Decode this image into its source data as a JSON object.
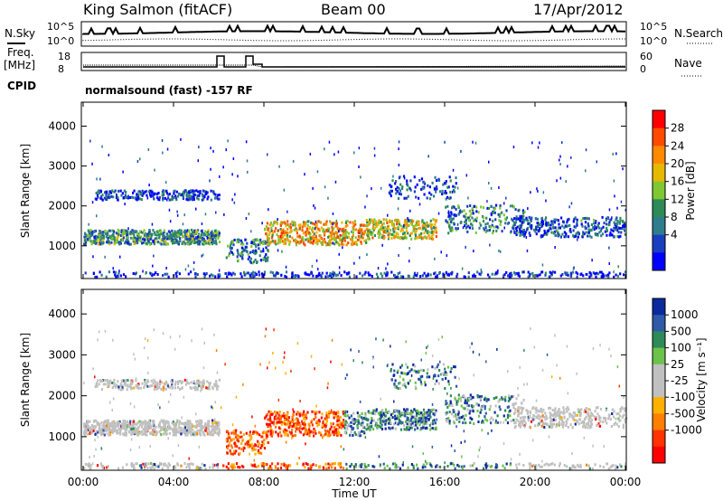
{
  "header": {
    "station": "King Salmon (fitACF)",
    "beam": "Beam 00",
    "date": "17/Apr/2012"
  },
  "status": {
    "nsky_label": "N.Sky",
    "nsearch_label": "N.Search",
    "noise_ticks": [
      "10^5",
      "10^0"
    ],
    "freq_label": "Freq.",
    "freq_unit": "[MHz]",
    "freq_ticks": [
      "18",
      "8"
    ],
    "nave_label": "Nave",
    "nave_ticks": [
      "60",
      "0"
    ],
    "cpid_label": "CPID",
    "cpid_text": "normalsound (fast) -157 RF"
  },
  "chart_data": [
    {
      "type": "heatmap",
      "panel": "power",
      "ylabel": "Slant Range [km]",
      "yticks": [
        1000,
        2000,
        3000,
        4000
      ],
      "ylim": [
        180,
        4600
      ],
      "colorbar_label": "Power [dB]",
      "colorbar_ticks": [
        "28",
        "24",
        "20",
        "16",
        "12",
        "8",
        "4"
      ],
      "colorbar_colors": [
        "#ff0000",
        "#ff4a00",
        "#ff8a00",
        "#e6b800",
        "#7fc832",
        "#2e8b57",
        "#2e7d8c",
        "#1a3ec0",
        "#0000ff"
      ]
    },
    {
      "type": "heatmap",
      "panel": "velocity",
      "ylabel": "Slant Range [km]",
      "yticks": [
        1000,
        2000,
        3000,
        4000
      ],
      "ylim": [
        180,
        4600
      ],
      "colorbar_label": "Velocity [m s⁻¹]",
      "colorbar_ticks": [
        "1000",
        "500",
        "100",
        "25",
        "-25",
        "-100",
        "-500",
        "-1000"
      ],
      "colorbar_colors": [
        "#0b2a9e",
        "#2e5aa8",
        "#2e8b57",
        "#6cc24a",
        "#c0c0c0",
        "#c0c0c0",
        "#ffb000",
        "#ff7f00",
        "#ff3300",
        "#ff0000"
      ]
    }
  ],
  "xaxis": {
    "label": "Time UT",
    "ticks": [
      "00:00",
      "04:00",
      "08:00",
      "12:00",
      "16:00",
      "20:00",
      "00:00"
    ]
  },
  "colors": {
    "frame": "#000000",
    "gray_scatter": "#c0c0c0"
  }
}
